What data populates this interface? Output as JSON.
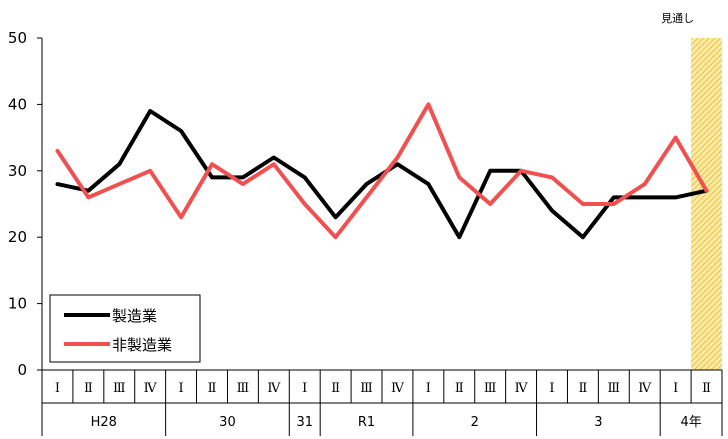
{
  "chart_data": {
    "type": "line",
    "title": "",
    "xlabel": "",
    "ylabel": "",
    "ylim": [
      0,
      50
    ],
    "yticks": [
      0,
      10,
      20,
      30,
      40,
      50
    ],
    "quarters": [
      "Ⅰ",
      "Ⅱ",
      "Ⅲ",
      "Ⅳ",
      "Ⅰ",
      "Ⅱ",
      "Ⅲ",
      "Ⅳ",
      "Ⅰ",
      "Ⅱ",
      "Ⅲ",
      "Ⅳ",
      "Ⅰ",
      "Ⅱ",
      "Ⅲ",
      "Ⅳ",
      "Ⅰ",
      "Ⅱ",
      "Ⅲ",
      "Ⅳ",
      "Ⅰ",
      "Ⅱ"
    ],
    "years": [
      {
        "label": "H28",
        "span": 4
      },
      {
        "label": "30",
        "span": 4
      },
      {
        "label": "31",
        "span": 1
      },
      {
        "label": "R1",
        "span": 3
      },
      {
        "label": "2",
        "span": 4
      },
      {
        "label": "3",
        "span": 4
      },
      {
        "label": "4年",
        "span": 2
      }
    ],
    "series": [
      {
        "name": "製造業",
        "color": "#000000",
        "values": [
          28,
          27,
          31,
          39,
          36,
          29,
          29,
          32,
          29,
          23,
          28,
          31,
          28,
          20,
          30,
          30,
          24,
          20,
          26,
          26,
          26,
          27
        ]
      },
      {
        "name": "非製造業",
        "color": "#f05050",
        "values": [
          33,
          26,
          28,
          30,
          23,
          31,
          28,
          31,
          25,
          20,
          26,
          32,
          40,
          29,
          25,
          30,
          29,
          25,
          25,
          28,
          35,
          27
        ]
      }
    ],
    "forecast": {
      "label": "見通し",
      "start_index": 21,
      "fill": "#f4cf3a"
    },
    "legend_position": "bottom-left",
    "grid": false
  }
}
